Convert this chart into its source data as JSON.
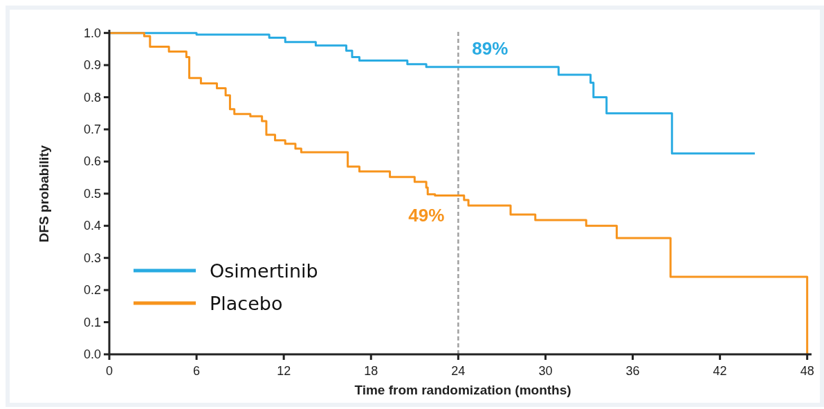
{
  "chart_data": {
    "type": "step",
    "xlabel": "Time from randomization (months)",
    "ylabel": "DFS probability",
    "xlim": [
      0,
      48.3
    ],
    "xticks": [
      0,
      6,
      12,
      18,
      24,
      30,
      36,
      42,
      48
    ],
    "ylim": [
      0,
      1.01
    ],
    "yticks": [
      {
        "value": 0,
        "label": "0.0"
      },
      {
        "value": 0.1,
        "label": "0.1"
      },
      {
        "value": 0.2,
        "label": "0.2"
      },
      {
        "value": 0.3,
        "label": "0.3"
      },
      {
        "value": 0.4,
        "label": "0.4"
      },
      {
        "value": 0.5,
        "label": "0.5"
      },
      {
        "value": 0.6,
        "label": "0.6"
      },
      {
        "value": 0.7,
        "label": "0.7"
      },
      {
        "value": 0.8,
        "label": "0.8"
      },
      {
        "value": 0.9,
        "label": "0.9"
      },
      {
        "value": 1,
        "label": "1.0"
      }
    ],
    "series": [
      {
        "name": "Osimertinib",
        "color": "#29abe2",
        "x": [
          0,
          6,
          11,
          12.1,
          14.2,
          16.3,
          16.7,
          17.2,
          20.5,
          21.8,
          30.9,
          33.1,
          33.3,
          34.2,
          38.7,
          44.4
        ],
        "values": [
          1,
          0.995,
          0.985,
          0.972,
          0.961,
          0.945,
          0.925,
          0.914,
          0.903,
          0.894,
          0.87,
          0.845,
          0.8,
          0.75,
          0.625,
          0.625
        ]
      },
      {
        "name": "Placebo",
        "color": "#f7941d",
        "x": [
          0,
          2.4,
          2.8,
          4.1,
          5.3,
          5.5,
          6.3,
          7.4,
          8.0,
          8.3,
          8.6,
          9.7,
          10.5,
          10.8,
          11.4,
          12.1,
          12.8,
          13.2,
          16.4,
          17.2,
          19.3,
          21.0,
          21.8,
          21.9,
          22.4,
          24.4,
          24.7,
          27.6,
          29.3,
          32.8,
          34.9,
          38.6,
          48
        ],
        "values": [
          1,
          0.99,
          0.957,
          0.942,
          0.925,
          0.86,
          0.843,
          0.828,
          0.806,
          0.763,
          0.748,
          0.741,
          0.726,
          0.683,
          0.666,
          0.655,
          0.64,
          0.629,
          0.584,
          0.569,
          0.552,
          0.537,
          0.519,
          0.498,
          0.494,
          0.48,
          0.463,
          0.435,
          0.418,
          0.4,
          0.362,
          0.241,
          0
        ]
      }
    ],
    "ref_lines": [
      {
        "axis": "x",
        "value": 24,
        "label": null,
        "color": "#a0a0a0",
        "line_style": "dashed"
      }
    ],
    "annotations": [
      {
        "text": "89%",
        "x": 24,
        "y": 0.89
      },
      {
        "text": "49%",
        "x": 24,
        "y": 0.49
      }
    ],
    "legend": "bottom left",
    "grid": false,
    "marker": "none",
    "line_style": "solid"
  }
}
